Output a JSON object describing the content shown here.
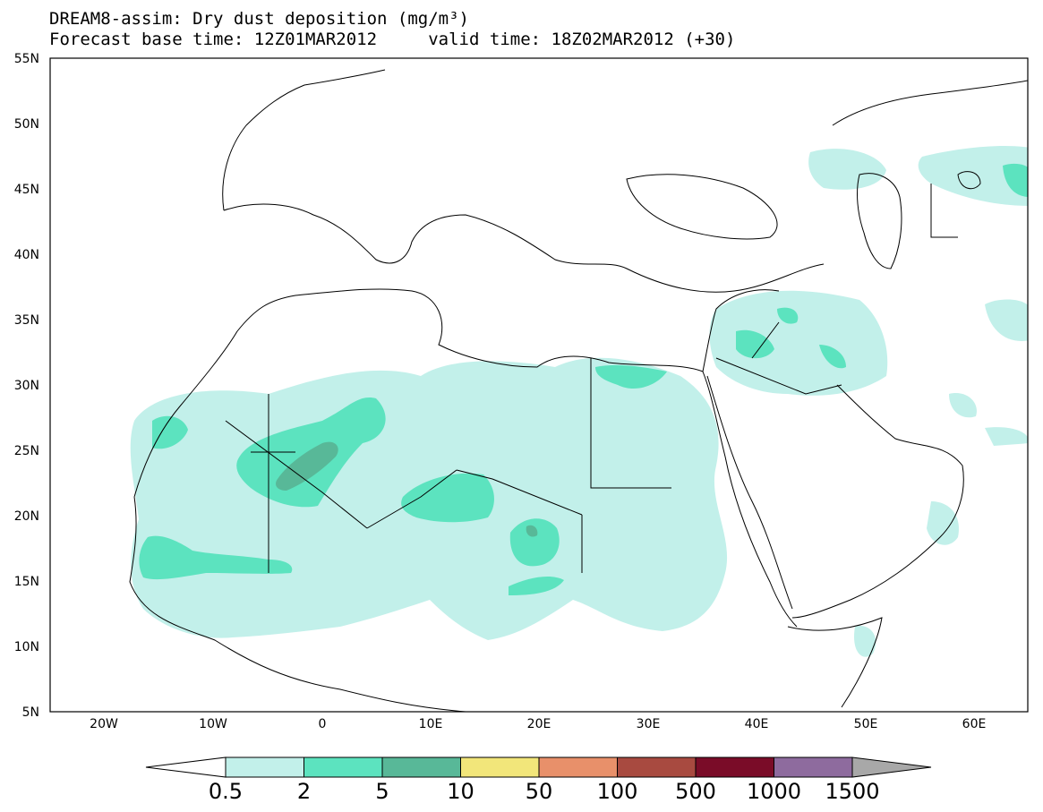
{
  "title": {
    "line1": "DREAM8-assim: Dry dust deposition (mg/m³)",
    "line2": "Forecast base time: 12Z01MAR2012     valid time: 18Z02MAR2012 (+30)"
  },
  "axes": {
    "lat_labels": [
      "55N",
      "50N",
      "45N",
      "40N",
      "35N",
      "30N",
      "25N",
      "20N",
      "15N",
      "10N",
      "5N"
    ],
    "lon_labels": [
      "20W",
      "10W",
      "0",
      "10E",
      "20E",
      "30E",
      "40E",
      "50E",
      "60E"
    ]
  },
  "colorbar": {
    "levels": [
      "0.5",
      "2",
      "5",
      "10",
      "50",
      "100",
      "500",
      "1000",
      "1500"
    ],
    "colors": [
      "#c2f0ea",
      "#5ce3bf",
      "#58b898",
      "#f2e67a",
      "#e8906a",
      "#a84a40",
      "#7a0c28",
      "#8e6b9e"
    ],
    "under_color": "#ffffff",
    "over_color": "#a8a8a8"
  },
  "map_legend": {
    "line_color": "#000000",
    "frame_color": "#000000"
  }
}
